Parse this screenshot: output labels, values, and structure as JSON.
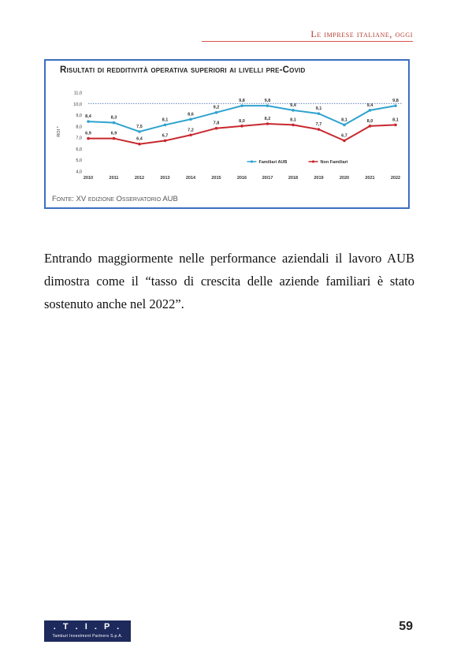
{
  "header": {
    "running_title": "Le imprese italiane, oggi"
  },
  "figure": {
    "title": "Risultati di redditività operativa superiori ai livelli pre-Covid",
    "source": "Fonte: XV edizione Osservatorio AUB"
  },
  "chart_data": {
    "type": "line",
    "ylabel": "ROI *",
    "ylim": [
      4.0,
      11.0
    ],
    "yticks": [
      "11,0",
      "10,0",
      "9,0",
      "8,0",
      "7,0",
      "6,0",
      "5,0",
      "4,0"
    ],
    "categories": [
      "2010",
      "2011",
      "2012",
      "2013",
      "2014",
      "2015",
      "2016",
      "20/17",
      "2018",
      "2019",
      "2020",
      "2021",
      "2022"
    ],
    "reference_line": 10.0,
    "legend_position": "bottom-right",
    "series": [
      {
        "name": "Familiari AUB",
        "color": "#2fa3cf",
        "values": [
          8.4,
          8.3,
          7.5,
          8.1,
          8.6,
          9.2,
          9.8,
          9.8,
          9.4,
          9.1,
          8.1,
          9.4,
          9.8
        ],
        "labels": [
          "8,4",
          "8,3",
          "7,5",
          "8,1",
          "8,6",
          "9,2",
          "9,8",
          "9,8",
          "9,4",
          "9,1",
          "8,1",
          "9,4",
          "9,8"
        ]
      },
      {
        "name": "Non Familiari",
        "color": "#c8282e",
        "values": [
          6.9,
          6.9,
          6.4,
          6.7,
          7.2,
          7.8,
          8.0,
          8.2,
          8.1,
          7.7,
          6.7,
          8.0,
          8.1
        ],
        "labels": [
          "6,9",
          "6,9",
          "6,4",
          "6,7",
          "7,2",
          "7,8",
          "8,0",
          "8,2",
          "8,1",
          "7,7",
          "6,7",
          "8,0",
          "8,1"
        ]
      }
    ]
  },
  "body": {
    "paragraph": "Entrando maggiormente nelle performance aziendali il lavoro AUB dimostra come il “tasso di crescita delle aziende familiari è stato sostenuto anche nel 2022”."
  },
  "footer": {
    "logo_mark": ". T . I . P .",
    "logo_subtitle": "Tamburi Investment Partners S.p.A.",
    "page_number": "59"
  }
}
